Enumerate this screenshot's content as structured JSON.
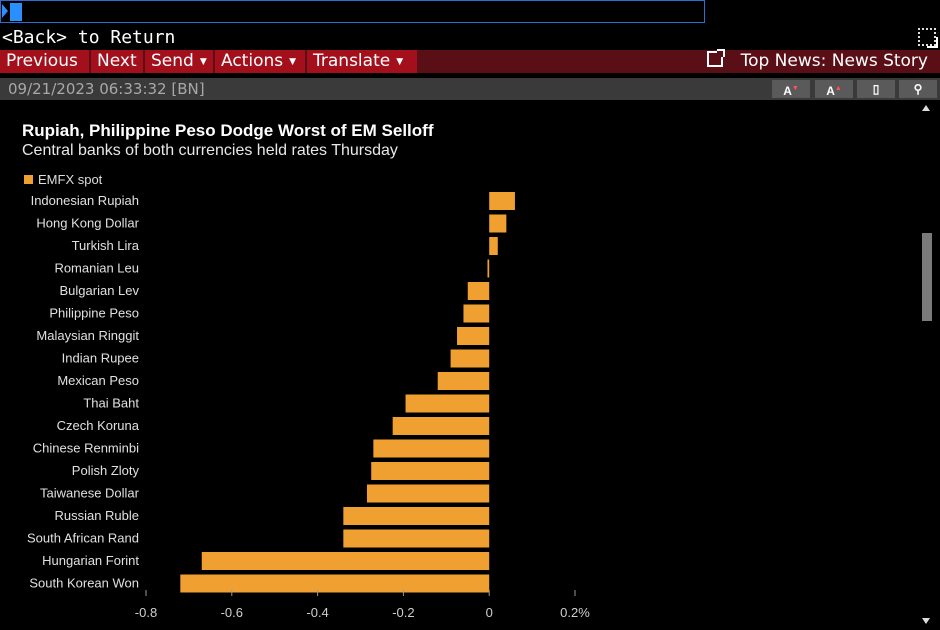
{
  "command_line": {
    "value": ""
  },
  "nav": {
    "back_label": "<Back> to Return"
  },
  "menu": {
    "previous": "Previous",
    "next": "Next",
    "send": "Send",
    "actions": "Actions",
    "translate": "Translate",
    "top_news": "Top News: News Story"
  },
  "info": {
    "timestamp": "09/21/2023 06:33:32 [BN]"
  },
  "colors": {
    "bar": "#f0a030",
    "menubar": "#a3101c",
    "accent": "#2a8fff"
  },
  "chart_data": {
    "type": "bar",
    "orientation": "horizontal",
    "title": "Rupiah, Philippine Peso Dodge Worst of EM Selloff",
    "subtitle": "Central banks of both currencies held rates Thursday",
    "legend_position": "top-left",
    "categories": [
      "Indonesian Rupiah",
      "Hong Kong Dollar",
      "Turkish Lira",
      "Romanian Leu",
      "Bulgarian Lev",
      "Philippine Peso",
      "Malaysian Ringgit",
      "Indian Rupee",
      "Mexican Peso",
      "Thai Baht",
      "Czech Koruna",
      "Chinese Renminbi",
      "Polish Zloty",
      "Taiwanese Dollar",
      "Russian Ruble",
      "South African Rand",
      "Hungarian Forint",
      "South Korean Won"
    ],
    "series": [
      {
        "name": "EMFX spot",
        "values": [
          0.06,
          0.04,
          0.02,
          -0.004,
          -0.05,
          -0.06,
          -0.075,
          -0.09,
          -0.12,
          -0.195,
          -0.225,
          -0.27,
          -0.275,
          -0.285,
          -0.34,
          -0.34,
          -0.67,
          -0.72
        ]
      }
    ],
    "xlim": [
      -0.8,
      0.2
    ],
    "xticks": [
      -0.8,
      -0.6,
      -0.4,
      -0.2,
      0,
      0.2
    ],
    "xtick_labels": [
      "-0.8",
      "-0.6",
      "-0.4",
      "-0.2",
      "0",
      "0.2%"
    ],
    "grid": false
  }
}
